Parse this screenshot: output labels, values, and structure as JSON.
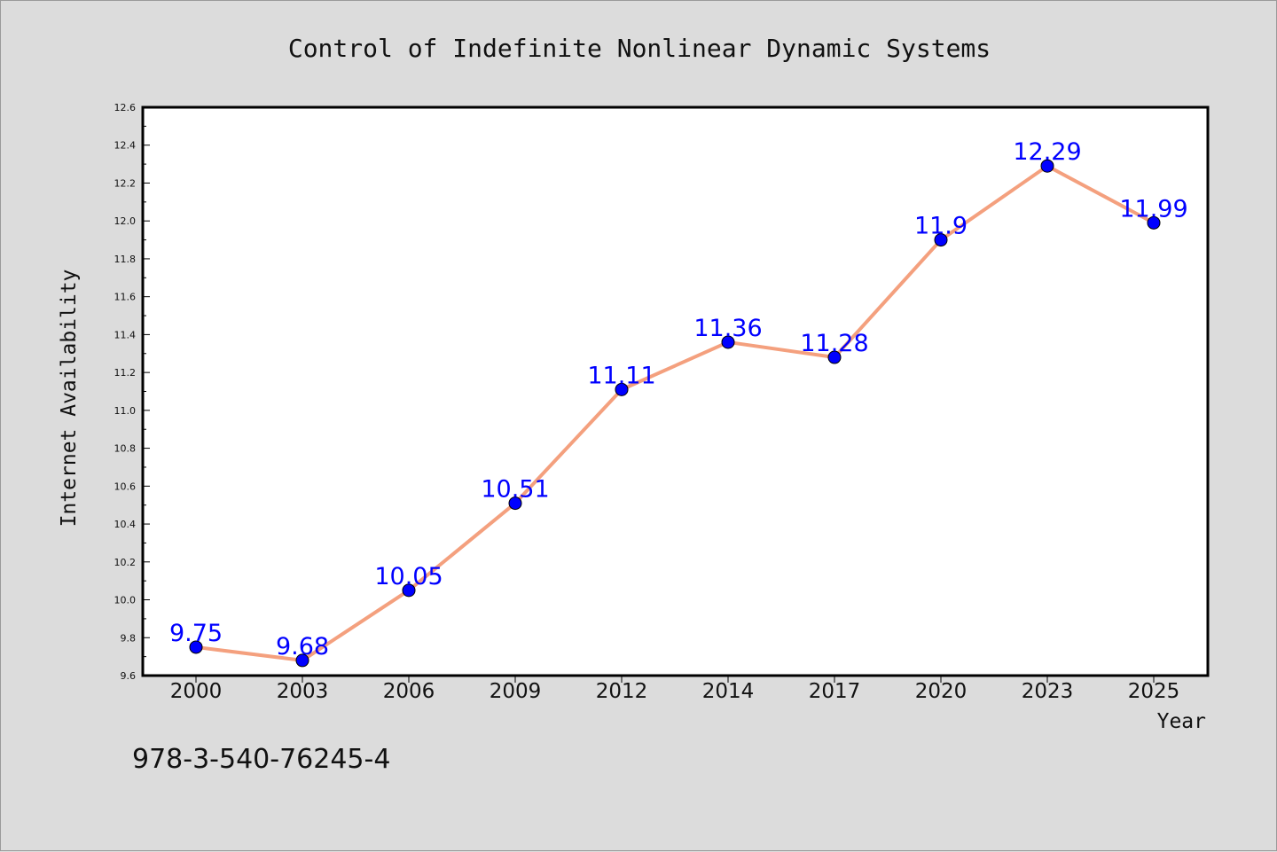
{
  "chart_data": {
    "type": "line",
    "title": "Control of Indefinite Nonlinear Dynamic Systems",
    "xlabel": "Year",
    "ylabel": "Internet Availability",
    "categories": [
      "2000",
      "2003",
      "2006",
      "2009",
      "2012",
      "2014",
      "2017",
      "2020",
      "2023",
      "2025"
    ],
    "series": [
      {
        "values": [
          9.75,
          9.68,
          10.05,
          10.51,
          11.11,
          11.36,
          11.28,
          11.9,
          12.29,
          11.99
        ],
        "data_labels": [
          "9.75",
          "9.68",
          "10.05",
          "10.51",
          "11.11",
          "11.36",
          "11.28",
          "11.9",
          "12.29",
          "11.99"
        ],
        "line_color": "#f4a07e",
        "marker_color": "#0000ff"
      }
    ],
    "ylim": [
      9.6,
      12.6
    ],
    "yticks": [
      "9.6",
      "9.8",
      "10.0",
      "10.2",
      "10.4",
      "10.6",
      "10.8",
      "11.0",
      "11.2",
      "11.4",
      "11.6",
      "11.8",
      "12.0",
      "12.2",
      "12.4",
      "12.6"
    ],
    "grid": false,
    "legend": "none"
  },
  "footer": {
    "isbn": "978-3-540-76245-4"
  }
}
